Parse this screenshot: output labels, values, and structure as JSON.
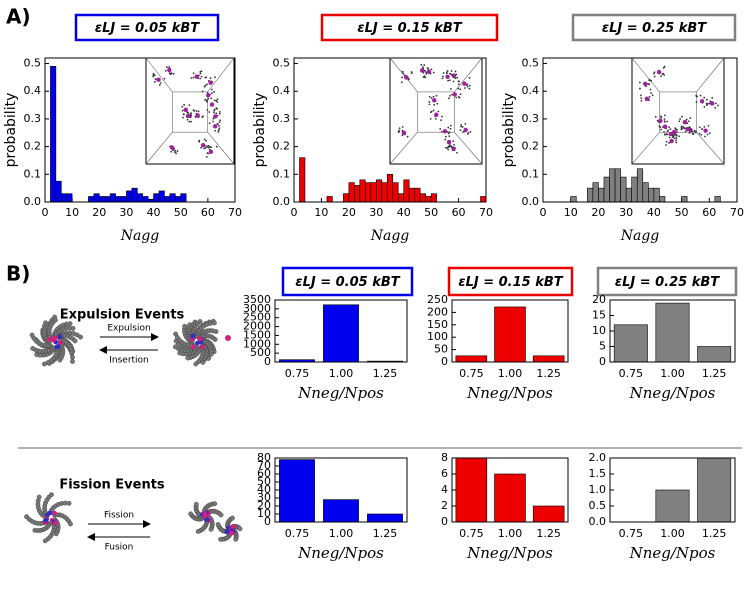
{
  "panel_labels": [
    "A)",
    "B)"
  ],
  "schemes": [
    {
      "title": "Expulsion Events",
      "forward": "Expulsion",
      "backward": "Insertion"
    },
    {
      "title": "Fission Events",
      "forward": "Fission",
      "backward": "Fusion"
    }
  ],
  "chart_data": [
    {
      "type": "histogram",
      "title": "εLJ = 0.05 kBT",
      "color": "#0000ee",
      "x_label": "Nagg",
      "y_label": "probability",
      "bins": [
        0,
        2,
        4,
        6,
        8,
        10,
        12,
        14,
        16,
        18,
        20,
        22,
        24,
        26,
        28,
        30,
        32,
        34,
        36,
        38,
        40,
        42,
        44,
        46,
        48,
        50,
        52,
        54,
        56,
        58,
        60,
        62,
        64,
        66,
        68,
        70
      ],
      "values": [
        0,
        0.49,
        0.075,
        0.03,
        0.03,
        0,
        0,
        0,
        0.02,
        0.03,
        0.02,
        0.02,
        0.03,
        0.02,
        0.02,
        0.04,
        0.05,
        0.03,
        0.02,
        0.01,
        0.03,
        0.04,
        0.02,
        0.03,
        0.02,
        0.03,
        0,
        0,
        0,
        0,
        0,
        0,
        0,
        0,
        0
      ],
      "xlim": [
        0,
        70
      ],
      "xticks": [
        0,
        10,
        20,
        30,
        40,
        50,
        60,
        70
      ],
      "ylim": [
        0,
        0.52
      ],
      "yticks": [
        {
          "value": 0,
          "label": "0.0"
        },
        0.1,
        0.2,
        0.3,
        0.4,
        0.5
      ]
    },
    {
      "type": "histogram",
      "title": "εLJ = 0.15 kBT",
      "color": "#ee0000",
      "x_label": "Nagg",
      "y_label": "probability",
      "bins": [
        0,
        2,
        4,
        6,
        8,
        10,
        12,
        14,
        16,
        18,
        20,
        22,
        24,
        26,
        28,
        30,
        32,
        34,
        36,
        38,
        40,
        42,
        44,
        46,
        48,
        50,
        52,
        54,
        56,
        58,
        60,
        62,
        64,
        66,
        68,
        70
      ],
      "values": [
        0,
        0.16,
        0,
        0,
        0,
        0,
        0.02,
        0,
        0,
        0.03,
        0.07,
        0.06,
        0.08,
        0.07,
        0.07,
        0.08,
        0.07,
        0.1,
        0.07,
        0.03,
        0.08,
        0.05,
        0.05,
        0.03,
        0.02,
        0.03,
        0,
        0,
        0,
        0,
        0,
        0,
        0,
        0,
        0.02
      ],
      "xlim": [
        0,
        70
      ],
      "xticks": [
        0,
        10,
        20,
        30,
        40,
        50,
        60,
        70
      ],
      "ylim": [
        0,
        0.52
      ],
      "yticks": [
        {
          "value": 0,
          "label": "0.0"
        },
        0.1,
        0.2,
        0.3,
        0.4,
        0.5
      ]
    },
    {
      "type": "histogram",
      "title": "εLJ = 0.25 kBT",
      "color": "#808080",
      "x_label": "Nagg",
      "y_label": "probability",
      "bins": [
        0,
        2,
        4,
        6,
        8,
        10,
        12,
        14,
        16,
        18,
        20,
        22,
        24,
        26,
        28,
        30,
        32,
        34,
        36,
        38,
        40,
        42,
        44,
        46,
        48,
        50,
        52,
        54,
        56,
        58,
        60,
        62,
        64,
        66,
        68,
        70
      ],
      "values": [
        0,
        0,
        0,
        0,
        0,
        0.02,
        0,
        0,
        0.05,
        0.07,
        0.05,
        0.09,
        0.12,
        0.12,
        0.09,
        0.05,
        0.09,
        0.12,
        0.07,
        0.05,
        0.05,
        0.02,
        0,
        0,
        0,
        0.02,
        0,
        0,
        0,
        0,
        0,
        0.02,
        0,
        0,
        0
      ],
      "xlim": [
        0,
        70
      ],
      "xticks": [
        0,
        10,
        20,
        30,
        40,
        50,
        60,
        70
      ],
      "ylim": [
        0,
        0.52
      ],
      "yticks": [
        {
          "value": 0,
          "label": "0.0"
        },
        0.1,
        0.2,
        0.3,
        0.4,
        0.5
      ]
    },
    {
      "type": "bar",
      "title": "εLJ = 0.05 kBT",
      "color": "#0000ee",
      "x_label": "Nneg/Npos",
      "categories": [
        "0.75",
        "1.00",
        "1.25"
      ],
      "values": [
        130,
        3230,
        50
      ],
      "ylim": [
        0,
        3500
      ],
      "yticks": [
        0,
        500,
        1000,
        1500,
        2000,
        2500,
        3000,
        3500
      ]
    },
    {
      "type": "bar",
      "title": "εLJ = 0.15 kBT",
      "color": "#ee0000",
      "x_label": "Nneg/Npos",
      "categories": [
        "0.75",
        "1.00",
        "1.25"
      ],
      "values": [
        25,
        222,
        25
      ],
      "ylim": [
        0,
        250
      ],
      "yticks": [
        0,
        50,
        100,
        150,
        200,
        250
      ]
    },
    {
      "type": "bar",
      "title": "εLJ = 0.25 kBT",
      "color": "#808080",
      "x_label": "Nneg/Npos",
      "categories": [
        "0.75",
        "1.00",
        "1.25"
      ],
      "values": [
        12,
        19,
        5
      ],
      "ylim": [
        0,
        20
      ],
      "yticks": [
        0,
        5,
        10,
        15,
        20
      ]
    },
    {
      "type": "bar",
      "color": "#0000ee",
      "x_label": "Nneg/Npos",
      "categories": [
        "0.75",
        "1.00",
        "1.25"
      ],
      "values": [
        78,
        28,
        10
      ],
      "ylim": [
        0,
        80
      ],
      "yticks": [
        0,
        10,
        20,
        30,
        40,
        50,
        60,
        70,
        80
      ]
    },
    {
      "type": "bar",
      "color": "#ee0000",
      "x_label": "Nneg/Npos",
      "categories": [
        "0.75",
        "1.00",
        "1.25"
      ],
      "values": [
        8,
        6,
        2
      ],
      "ylim": [
        0,
        8
      ],
      "yticks": [
        0,
        2,
        4,
        6,
        8
      ]
    },
    {
      "type": "bar",
      "color": "#808080",
      "x_label": "Nneg/Npos",
      "categories": [
        "0.75",
        "1.00",
        "1.25"
      ],
      "values": [
        0,
        1,
        2
      ],
      "ylim": [
        0,
        2
      ],
      "yticks": [
        {
          "value": 0,
          "label": "0.0"
        },
        0.5,
        {
          "value": 1,
          "label": "1.0"
        },
        1.5,
        {
          "value": 2,
          "label": "2.0"
        }
      ]
    }
  ]
}
